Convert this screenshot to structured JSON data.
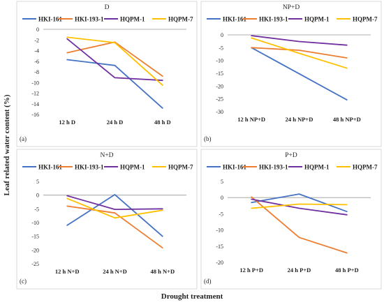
{
  "figure": {
    "ylabel": "Leaf related water content (%)",
    "xlabel": "Drought treatment"
  },
  "chart_data": [
    {
      "type": "line",
      "title": "D",
      "panel_label": "(a)",
      "categories": [
        "12 h D",
        "24 h D",
        "48 h D"
      ],
      "ylim": [
        -16,
        0
      ],
      "yticks": [
        0,
        -2,
        -4,
        -6,
        -8,
        -10,
        -12,
        -14,
        -16
      ],
      "series": [
        {
          "name": "HKI-161",
          "color": "#4472C4",
          "values": [
            -5.7,
            -6.8,
            -14.8
          ]
        },
        {
          "name": "HKI-193-1",
          "color": "#ED7D31",
          "values": [
            -4.4,
            -2.4,
            -8.8
          ]
        },
        {
          "name": "HQPM-1",
          "color": "#7030A0",
          "values": [
            -1.8,
            -9.1,
            -9.6
          ]
        },
        {
          "name": "HQPM-7",
          "color": "#FFC000",
          "values": [
            -1.5,
            -2.5,
            -10.5
          ]
        }
      ]
    },
    {
      "type": "line",
      "title": "NP+D",
      "panel_label": "(b)",
      "categories": [
        "12 h NP+D",
        "24 h NP+D",
        "48 h NP+D"
      ],
      "ylim": [
        -30,
        0
      ],
      "yticks": [
        0,
        -5,
        -10,
        -15,
        -20,
        -25,
        -30
      ],
      "series": [
        {
          "name": "HKI-161",
          "color": "#4472C4",
          "values": [
            -5.0,
            -15.2,
            -25.4
          ]
        },
        {
          "name": "HKI-193-1",
          "color": "#ED7D31",
          "values": [
            -5.0,
            -6.0,
            -9.0
          ]
        },
        {
          "name": "HQPM-1",
          "color": "#7030A0",
          "values": [
            -0.3,
            -2.6,
            -4.0
          ]
        },
        {
          "name": "HQPM-7",
          "color": "#FFC000",
          "values": [
            -1.2,
            -7.2,
            -13.0
          ]
        }
      ]
    },
    {
      "type": "line",
      "title": "N+D",
      "panel_label": "(c)",
      "categories": [
        "12 h N+D",
        "24 h  N+D",
        "48 h  N+D"
      ],
      "ylim": [
        -25,
        5
      ],
      "yticks": [
        5,
        0,
        -5,
        -10,
        -15,
        -20,
        -25
      ],
      "series": [
        {
          "name": "HKI-161",
          "color": "#4472C4",
          "values": [
            -11.0,
            0.2,
            -15.0
          ]
        },
        {
          "name": "HKI-193-1",
          "color": "#ED7D31",
          "values": [
            -4.0,
            -6.5,
            -19.2
          ]
        },
        {
          "name": "HQPM-1",
          "color": "#7030A0",
          "values": [
            -0.2,
            -5.2,
            -5.0
          ]
        },
        {
          "name": "HQPM-7",
          "color": "#FFC000",
          "values": [
            -1.2,
            -8.3,
            -5.5
          ]
        }
      ]
    },
    {
      "type": "line",
      "title": "P+D",
      "panel_label": "(d)",
      "categories": [
        "12 h P+D",
        "24 h P+D",
        "48 h P+D"
      ],
      "ylim": [
        -20,
        5
      ],
      "yticks": [
        5,
        0,
        -5,
        -10,
        -15,
        -20
      ],
      "series": [
        {
          "name": "HKI-161",
          "color": "#4472C4",
          "values": [
            -1.5,
            1.1,
            -4.3
          ]
        },
        {
          "name": "HKI-193-1",
          "color": "#ED7D31",
          "values": [
            0.2,
            -12.3,
            -17.1
          ]
        },
        {
          "name": "HQPM-1",
          "color": "#7030A0",
          "values": [
            -0.5,
            -3.3,
            -5.3
          ]
        },
        {
          "name": "HQPM-7",
          "color": "#FFC000",
          "values": [
            -3.3,
            -2.0,
            -2.2
          ]
        }
      ]
    }
  ]
}
